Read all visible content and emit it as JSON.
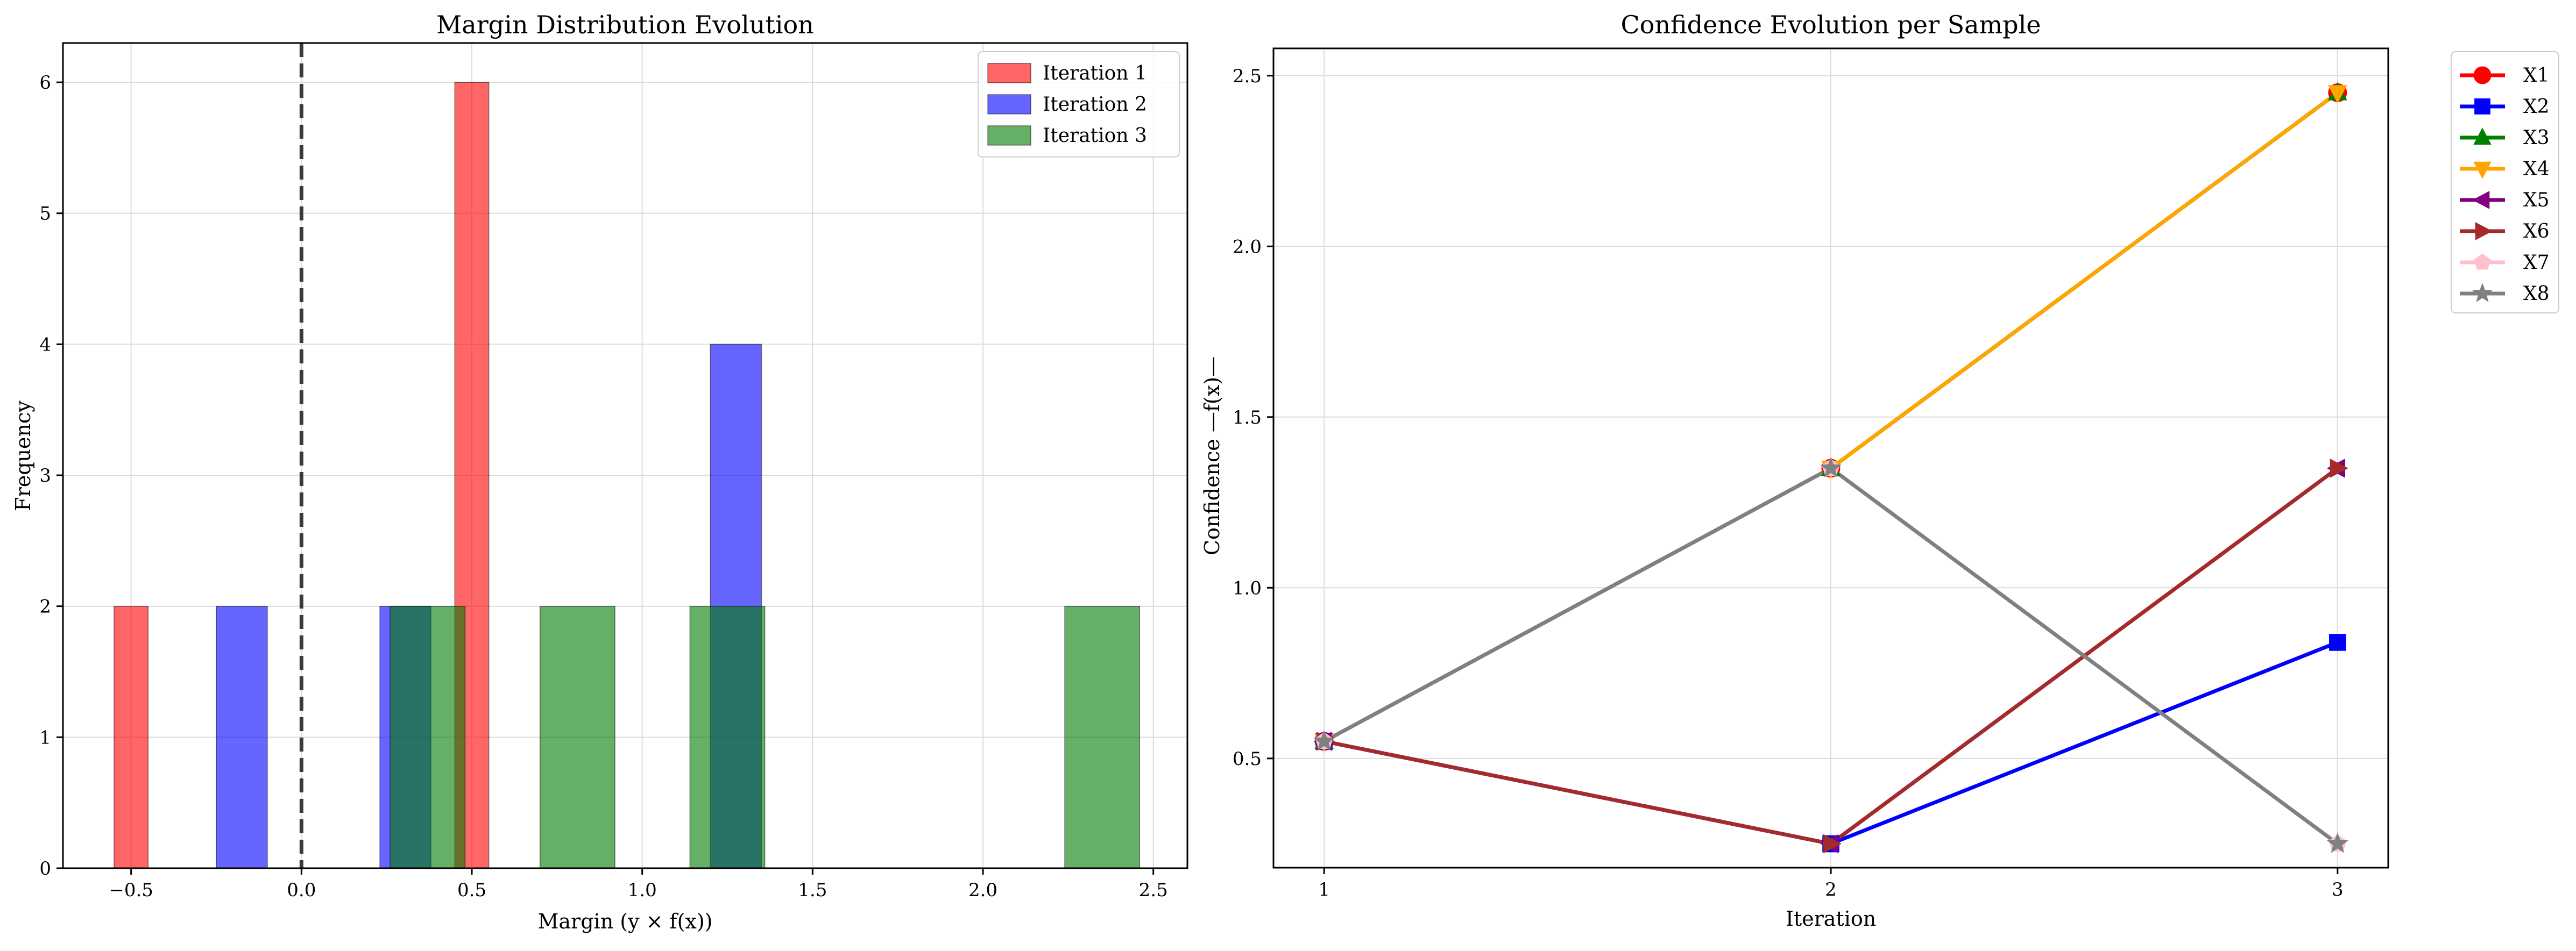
{
  "chart_data": [
    {
      "type": "bar",
      "title": "Margin Distribution Evolution",
      "xlabel": "Margin (y × f(x))",
      "ylabel": "Frequency",
      "xlim": [
        -0.7,
        2.6
      ],
      "ylim": [
        0,
        6.3
      ],
      "xticks": [
        -0.5,
        0.0,
        0.5,
        1.0,
        1.5,
        2.0,
        2.5
      ],
      "xtick_labels": [
        "−0.5",
        "0.0",
        "0.5",
        "1.0",
        "1.5",
        "2.0",
        "2.5"
      ],
      "yticks": [
        0,
        1,
        2,
        3,
        4,
        5,
        6
      ],
      "ytick_labels": [
        "0",
        "1",
        "2",
        "3",
        "4",
        "5",
        "6"
      ],
      "grid": true,
      "legend_position": "top-right",
      "reference_line": {
        "x": 0.0,
        "style": "dashed"
      },
      "series": [
        {
          "name": "Iteration 1",
          "color": "#ff6b6b",
          "bins": [
            {
              "x0": -0.55,
              "x1": -0.45,
              "count": 2
            },
            {
              "x0": 0.45,
              "x1": 0.55,
              "count": 6
            }
          ]
        },
        {
          "name": "Iteration 2",
          "color": "#6b6bff",
          "bins": [
            {
              "x0": -0.25,
              "x1": -0.1,
              "count": 2
            },
            {
              "x0": 0.23,
              "x1": 0.38,
              "count": 2
            },
            {
              "x0": 1.2,
              "x1": 1.35,
              "count": 4
            }
          ]
        },
        {
          "name": "Iteration 3",
          "color": "#66b266",
          "bins": [
            {
              "x0": 0.26,
              "x1": 0.48,
              "count": 2
            },
            {
              "x0": 0.7,
              "x1": 0.92,
              "count": 2
            },
            {
              "x0": 1.14,
              "x1": 1.36,
              "count": 2
            },
            {
              "x0": 2.24,
              "x1": 2.46,
              "count": 2
            }
          ]
        }
      ]
    },
    {
      "type": "line",
      "title": "Confidence Evolution per Sample",
      "xlabel": "Iteration",
      "ylabel": "Confidence —f(x)—",
      "x": [
        1,
        2,
        3
      ],
      "xlim": [
        0.9,
        3.1
      ],
      "ylim": [
        0.18,
        2.58
      ],
      "xticks": [
        1,
        2,
        3
      ],
      "xtick_labels": [
        "1",
        "2",
        "3"
      ],
      "yticks": [
        0.5,
        1.0,
        1.5,
        2.0,
        2.5
      ],
      "ytick_labels": [
        "0.5",
        "1.0",
        "1.5",
        "2.0",
        "2.5"
      ],
      "grid": true,
      "legend_position": "outside-top-right",
      "series": [
        {
          "name": "X1",
          "color": "#ff0000",
          "marker": "circle",
          "values": [
            0.55,
            1.35,
            2.45
          ]
        },
        {
          "name": "X2",
          "color": "#0000ff",
          "marker": "square",
          "values": [
            0.55,
            0.25,
            0.84
          ]
        },
        {
          "name": "X3",
          "color": "#008000",
          "marker": "triangle-up",
          "values": [
            0.55,
            1.35,
            2.45
          ]
        },
        {
          "name": "X4",
          "color": "#ffa500",
          "marker": "triangle-down",
          "values": [
            0.55,
            1.35,
            2.45
          ]
        },
        {
          "name": "X5",
          "color": "#800080",
          "marker": "triangle-left",
          "values": [
            0.55,
            0.25,
            1.35
          ]
        },
        {
          "name": "X6",
          "color": "#a52a2a",
          "marker": "triangle-right",
          "values": [
            0.55,
            0.25,
            1.35
          ]
        },
        {
          "name": "X7",
          "color": "#ffc0cb",
          "marker": "pentagon",
          "values": [
            0.55,
            1.35,
            0.25
          ]
        },
        {
          "name": "X8",
          "color": "#808080",
          "marker": "star",
          "values": [
            0.55,
            1.35,
            0.25
          ]
        }
      ]
    }
  ]
}
